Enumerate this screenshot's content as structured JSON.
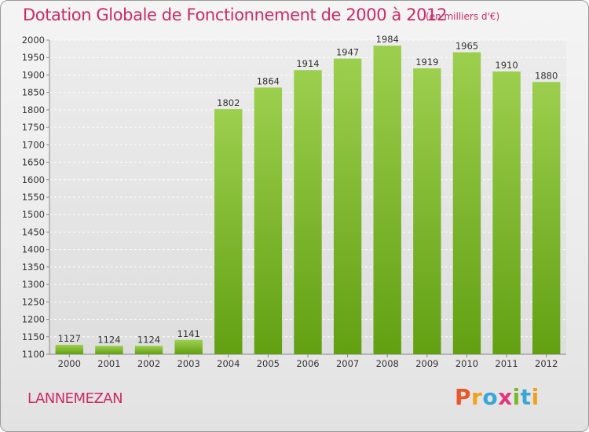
{
  "header": {
    "title": "Dotation Globale de Fonctionnement de 2000 à 2012",
    "subtitle": "(en milliers d'€)"
  },
  "footer": {
    "commune": "LANNEMEZAN",
    "logo_text": "Proxiti",
    "logo_colors": [
      "#e8562a",
      "#f2a11d",
      "#3aa6d8",
      "#e3367a",
      "#7ab929",
      "#3aa6d8",
      "#f2a11d"
    ]
  },
  "chart_data": {
    "type": "bar",
    "categories": [
      "2000",
      "2001",
      "2002",
      "2003",
      "2004",
      "2005",
      "2006",
      "2007",
      "2008",
      "2009",
      "2010",
      "2011",
      "2012"
    ],
    "values": [
      1127,
      1124,
      1124,
      1141,
      1802,
      1864,
      1914,
      1947,
      1984,
      1919,
      1965,
      1910,
      1880
    ],
    "title": "Dotation Globale de Fonctionnement de 2000 à 2012",
    "subtitle": "(en milliers d'€)",
    "xlabel": "",
    "ylabel": "",
    "ylim": [
      1100,
      2000
    ],
    "yticks": [
      1100,
      1150,
      1200,
      1250,
      1300,
      1350,
      1400,
      1450,
      1500,
      1550,
      1600,
      1650,
      1700,
      1750,
      1800,
      1850,
      1900,
      1950,
      2000
    ],
    "grid": true,
    "bar_color_top": "#9ccf4e",
    "bar_color_bottom": "#62a012"
  }
}
